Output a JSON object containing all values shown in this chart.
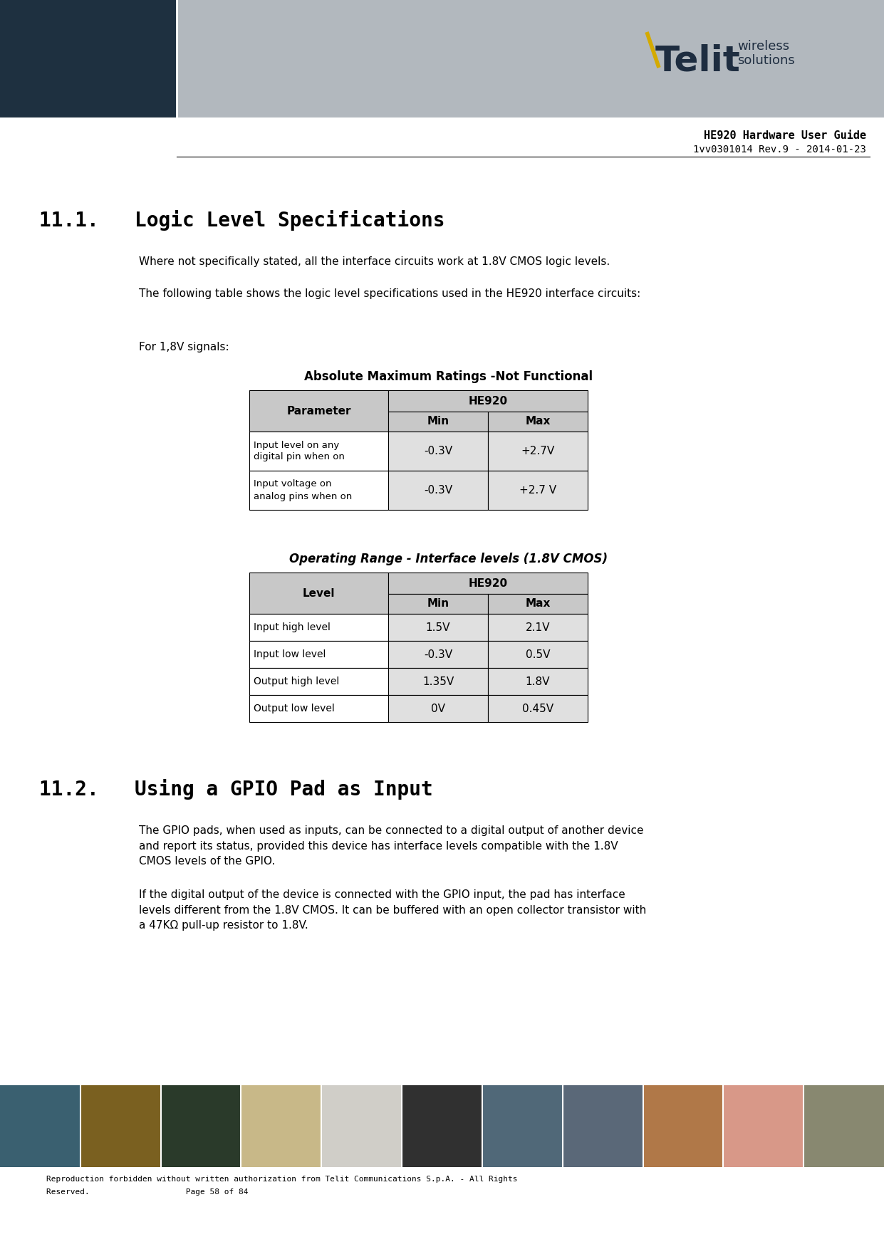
{
  "page_title": "HE920 Hardware User Guide",
  "page_subtitle": "1vv0301014 Rev.9 - 2014-01-23",
  "header_dark_color": "#1e3040",
  "header_gray_color": "#b2b8be",
  "section1_title": "11.1.   Logic Level Specifications",
  "section1_para1": "Where not specifically stated, all the interface circuits work at 1.8V CMOS logic levels.",
  "section1_para2": "The following table shows the logic level specifications used in the HE920 interface circuits:",
  "for_signals_label": "For 1,8V signals:",
  "table1_title": "Absolute Maximum Ratings -Not Functional",
  "table1_header_col": "Parameter",
  "table1_header_span": "HE920",
  "table1_subheader": [
    "Min",
    "Max"
  ],
  "table1_rows": [
    [
      "Input level on any\ndigital pin when on",
      "-0.3V",
      "+2.7V"
    ],
    [
      "Input voltage on\nanalog pins when on",
      "-0.3V",
      "+2.7 V"
    ]
  ],
  "table2_title": "Operating Range - Interface levels (1.8V CMOS)",
  "table2_header_col": "Level",
  "table2_header_span": "HE920",
  "table2_subheader": [
    "Min",
    "Max"
  ],
  "table2_rows": [
    [
      "Input high level",
      "1.5V",
      "2.1V"
    ],
    [
      "Input low level",
      "-0.3V",
      "0.5V"
    ],
    [
      "Output high level",
      "1.35V",
      "1.8V"
    ],
    [
      "Output low level",
      "0V",
      "0.45V"
    ]
  ],
  "section2_title": "11.2.   Using a GPIO Pad as Input",
  "section2_para1": "The GPIO pads, when used as inputs, can be connected to a digital output of another device\nand report its status, provided this device has interface levels compatible with the 1.8V\nCMOS levels of the GPIO.",
  "section2_para2": "If the digital output of the device is connected with the GPIO input, the pad has interface\nlevels different from the 1.8V CMOS. It can be buffered with an open collector transistor with\na 47KΩ pull-up resistor to 1.8V.",
  "footer_text1": "Reproduction forbidden without written authorization from Telit Communications S.p.A. - All Rights",
  "footer_text2": "Reserved.                    Page 58 of 84",
  "table_header_bg": "#c8c8c8",
  "table_alt_bg": "#e0e0e0",
  "table_white_bg": "#ffffff",
  "table_border": "#000000",
  "telit_dark": "#1e2d40",
  "telit_yellow": "#d4aa00"
}
